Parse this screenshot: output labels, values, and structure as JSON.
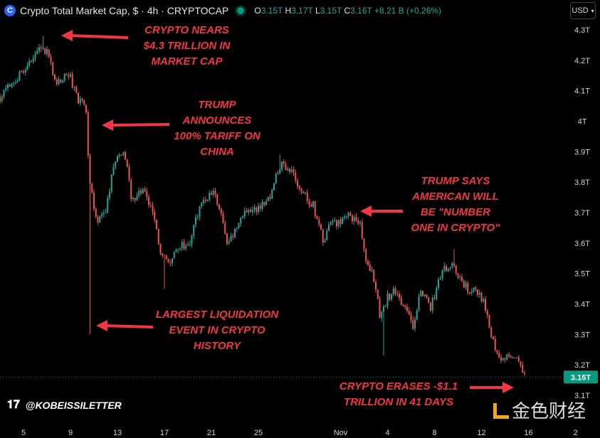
{
  "header": {
    "logo": "C",
    "title": "Crypto Total Market Cap, $ · 4h · CRYPTOCAP",
    "o_label": "O",
    "o": "3.15T",
    "h_label": "H",
    "h": "3.17T",
    "l_label": "L",
    "l": "3.15T",
    "c_label": "C",
    "c": "3.16T",
    "change": "+8.21 B (+0.26%)",
    "currency": "USD"
  },
  "colors": {
    "up": "#26a69a",
    "down": "#ef5350",
    "annotation": "#f23645",
    "price_tag": "#089981"
  },
  "annotations": [
    "CRYPTO NEARS\n$4.3 TRILLION IN\nMARKET CAP",
    "TRUMP\nANNOUNCES\n100% TARIFF ON\nCHINA",
    "TRUMP SAYS\nAMERICAN WILL\nBE \"NUMBER\nONE IN CRYPTO\"",
    "LARGEST LIQUIDATION\nEVENT IN CRYPTO\nHISTORY",
    "CRYPTO ERASES -$1.1\nTRILLION IN 41 DAYS"
  ],
  "watermark": "@KOBEISSILETTER",
  "source_logo": "金色财经",
  "chart_data": {
    "type": "candlestick",
    "title": "Crypto Total Market Cap, $ · 4h · CRYPTOCAP",
    "x_unit": "days since Oct 3",
    "ylim": [
      3.07,
      4.33
    ],
    "y_ticks": [
      "4.3T",
      "4.2T",
      "4.1T",
      "4T",
      "3.9T",
      "3.8T",
      "3.7T",
      "3.6T",
      "3.5T",
      "3.4T",
      "3.3T",
      "3.2T",
      "3.1T"
    ],
    "y_tick_values": [
      4.3,
      4.2,
      4.1,
      4.0,
      3.9,
      3.8,
      3.7,
      3.6,
      3.5,
      3.4,
      3.3,
      3.2,
      3.1
    ],
    "x_ticks": [
      "5",
      "9",
      "13",
      "17",
      "21",
      "25",
      "Nov",
      "4",
      "8",
      "12",
      "16",
      "2"
    ],
    "x_tick_days": [
      2,
      6,
      10,
      14,
      18,
      22,
      29,
      33,
      37,
      41,
      45,
      49
    ],
    "last_price": "3.16T",
    "last_value": 3.16,
    "close_path": [
      [
        0,
        4.08
      ],
      [
        1.2,
        4.13
      ],
      [
        2.4,
        4.18
      ],
      [
        3.6,
        4.25
      ],
      [
        4.2,
        4.21
      ],
      [
        4.8,
        4.12
      ],
      [
        5.8,
        4.16
      ],
      [
        6.7,
        4.07
      ],
      [
        7.3,
        4.05
      ],
      [
        7.6,
        3.81
      ],
      [
        8.2,
        3.67
      ],
      [
        9.1,
        3.72
      ],
      [
        9.7,
        3.86
      ],
      [
        10.6,
        3.9
      ],
      [
        11.2,
        3.74
      ],
      [
        12.1,
        3.78
      ],
      [
        13,
        3.7
      ],
      [
        13.6,
        3.58
      ],
      [
        14.2,
        3.53
      ],
      [
        15.2,
        3.59
      ],
      [
        16.1,
        3.6
      ],
      [
        17,
        3.72
      ],
      [
        18.2,
        3.77
      ],
      [
        18.8,
        3.7
      ],
      [
        19.4,
        3.59
      ],
      [
        20,
        3.65
      ],
      [
        20.9,
        3.71
      ],
      [
        21.8,
        3.71
      ],
      [
        22.7,
        3.73
      ],
      [
        23.3,
        3.79
      ],
      [
        23.9,
        3.86
      ],
      [
        24.8,
        3.83
      ],
      [
        25.8,
        3.77
      ],
      [
        26.7,
        3.72
      ],
      [
        27.6,
        3.6
      ],
      [
        27.9,
        3.65
      ],
      [
        28.8,
        3.67
      ],
      [
        29.7,
        3.69
      ],
      [
        30.6,
        3.67
      ],
      [
        31.2,
        3.53
      ],
      [
        31.8,
        3.49
      ],
      [
        32.4,
        3.35
      ],
      [
        33,
        3.42
      ],
      [
        33.6,
        3.44
      ],
      [
        34.5,
        3.39
      ],
      [
        35.2,
        3.32
      ],
      [
        35.8,
        3.44
      ],
      [
        36.7,
        3.39
      ],
      [
        37.6,
        3.51
      ],
      [
        38.5,
        3.53
      ],
      [
        39.4,
        3.46
      ],
      [
        40.3,
        3.44
      ],
      [
        41.2,
        3.42
      ],
      [
        41.8,
        3.3
      ],
      [
        42.4,
        3.22
      ],
      [
        43.3,
        3.22
      ],
      [
        44.2,
        3.22
      ],
      [
        44.7,
        3.16
      ]
    ],
    "extreme_wicks": [
      [
        7.7,
        3.3
      ],
      [
        3.6,
        4.28
      ],
      [
        14,
        3.45
      ],
      [
        32.6,
        3.23
      ],
      [
        23.8,
        3.89
      ],
      [
        38.6,
        3.58
      ]
    ]
  }
}
